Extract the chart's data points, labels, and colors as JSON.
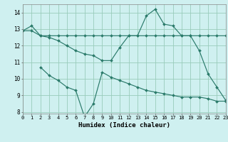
{
  "xlabel": "Humidex (Indice chaleur)",
  "background_color": "#cff0f0",
  "grid_color": "#99ccbb",
  "line_color": "#2a7a6a",
  "series": [
    {
      "x": [
        0,
        1,
        2,
        3,
        4,
        5,
        6,
        7,
        8,
        9,
        10,
        11,
        12,
        13,
        14,
        15,
        16,
        17,
        18,
        19,
        20,
        21,
        22,
        23
      ],
      "y": [
        12.9,
        12.9,
        12.6,
        12.6,
        12.6,
        12.6,
        12.6,
        12.6,
        12.6,
        12.6,
        12.6,
        12.6,
        12.6,
        12.6,
        12.6,
        12.6,
        12.6,
        12.6,
        12.6,
        12.6,
        12.6,
        12.6,
        12.6,
        12.6
      ]
    },
    {
      "x": [
        0,
        1,
        2,
        3,
        4,
        5,
        6,
        7,
        8,
        9,
        10,
        11,
        12,
        13,
        14,
        15,
        16,
        17,
        18,
        19,
        20,
        21,
        22,
        23
      ],
      "y": [
        12.9,
        13.2,
        12.6,
        12.5,
        12.3,
        12.0,
        11.7,
        11.5,
        11.4,
        11.1,
        11.1,
        11.9,
        12.6,
        12.6,
        13.8,
        14.2,
        13.3,
        13.2,
        12.6,
        12.6,
        11.7,
        10.3,
        9.5,
        8.7
      ]
    },
    {
      "x": [
        2,
        3,
        4,
        5,
        6,
        7,
        8,
        9,
        10,
        11,
        12,
        13,
        14,
        15,
        16,
        17,
        18,
        19,
        20,
        21,
        22,
        23
      ],
      "y": [
        10.7,
        10.2,
        9.9,
        9.5,
        9.3,
        7.7,
        8.5,
        10.4,
        10.1,
        9.9,
        9.7,
        9.5,
        9.3,
        9.2,
        9.1,
        9.0,
        8.9,
        8.9,
        8.9,
        8.8,
        8.65,
        8.65
      ]
    }
  ],
  "xlim": [
    0,
    23
  ],
  "ylim": [
    7.9,
    14.5
  ],
  "yticks": [
    8,
    9,
    10,
    11,
    12,
    13,
    14
  ],
  "xticks": [
    0,
    1,
    2,
    3,
    4,
    5,
    6,
    7,
    8,
    9,
    10,
    11,
    12,
    13,
    14,
    15,
    16,
    17,
    18,
    19,
    20,
    21,
    22,
    23
  ],
  "tick_fontsize": 5.0,
  "xlabel_fontsize": 6.5,
  "marker_size": 2.0,
  "linewidth": 0.85
}
